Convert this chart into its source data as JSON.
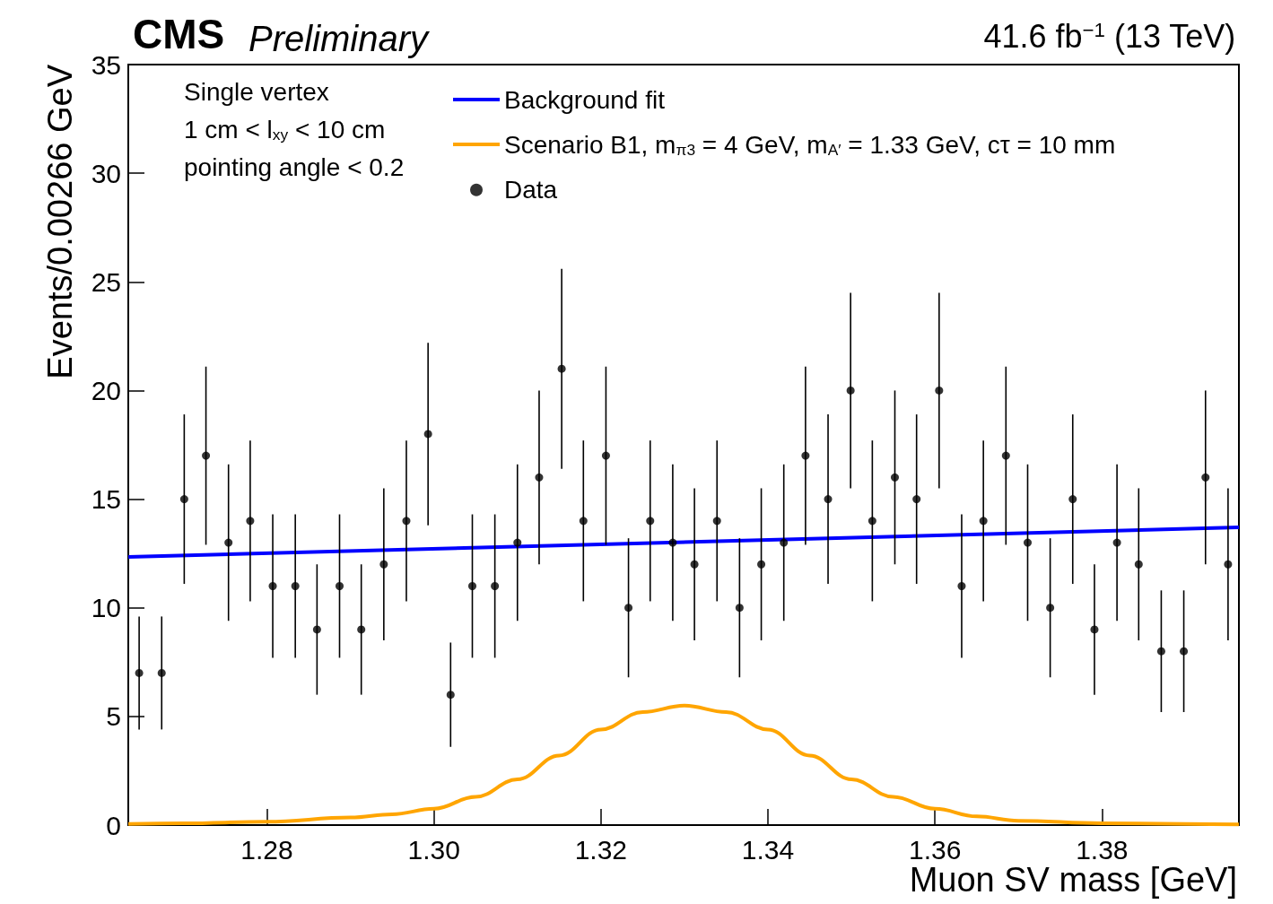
{
  "chart_data": {
    "type": "scatter",
    "title": "CMS",
    "subtitle": "Preliminary",
    "xlabel": "Muon SV mass [GeV]",
    "ylabel": "Events/0.00266 GeV",
    "annotations": [
      "Single vertex",
      "1 cm < l$_{xy}$ < 10 cm",
      "pointing angle < 0.2",
      "41.6 fb$^{−1}$ (13 TeV)"
    ],
    "xlim": [
      1.2634,
      1.3964
    ],
    "xticks": [
      {
        "value": 1.28,
        "label": "1.28"
      },
      {
        "value": 1.3,
        "label": "1.30"
      },
      {
        "value": 1.32,
        "label": "1.32"
      },
      {
        "value": 1.34,
        "label": "1.34"
      },
      {
        "value": 1.36,
        "label": "1.36"
      },
      {
        "value": 1.38,
        "label": "1.38"
      }
    ],
    "ylim": [
      0,
      35
    ],
    "yticks": [
      0,
      5,
      10,
      15,
      20,
      25,
      30,
      35
    ],
    "grid": false,
    "legend": "top",
    "series": [
      {
        "name": "Background fit",
        "type": "line",
        "color": "#0000ff",
        "marker": "none",
        "x": [
          1.2634,
          1.3964
        ],
        "values": [
          12.34,
          13.7
        ]
      },
      {
        "name": "Scenario B1, m$_{π3}$ = 4 GeV, m$_{A′}$ = 1.33 GeV, cτ = 10 mm",
        "type": "line",
        "color": "#ffa500",
        "marker": "none",
        "x": [
          1.2634,
          1.27,
          1.28,
          1.29,
          1.295,
          1.3,
          1.305,
          1.31,
          1.315,
          1.32,
          1.325,
          1.33,
          1.335,
          1.34,
          1.345,
          1.35,
          1.355,
          1.36,
          1.365,
          1.37,
          1.38,
          1.3964
        ],
        "values": [
          0.05,
          0.08,
          0.15,
          0.35,
          0.5,
          0.75,
          1.3,
          2.1,
          3.2,
          4.4,
          5.2,
          5.5,
          5.2,
          4.4,
          3.2,
          2.1,
          1.3,
          0.75,
          0.4,
          0.2,
          0.08,
          0.03
        ]
      },
      {
        "name": "Data",
        "color": "#000000",
        "marker": "circle",
        "x": [
          1.2647,
          1.2674,
          1.2701,
          1.2727,
          1.2754,
          1.278,
          1.2807,
          1.2834,
          1.286,
          1.2887,
          1.2913,
          1.294,
          1.2967,
          1.2993,
          1.302,
          1.3046,
          1.3073,
          1.31,
          1.3126,
          1.3153,
          1.3179,
          1.3206,
          1.3233,
          1.3259,
          1.3286,
          1.3312,
          1.3339,
          1.3366,
          1.3392,
          1.3419,
          1.3445,
          1.3472,
          1.3499,
          1.3525,
          1.3552,
          1.3578,
          1.3605,
          1.3632,
          1.3658,
          1.3685,
          1.3711,
          1.3738,
          1.3765,
          1.3791,
          1.3818,
          1.3844,
          1.3871,
          1.3898,
          1.3924,
          1.3951
        ],
        "values": [
          7,
          7,
          15,
          17,
          13,
          14,
          11,
          11,
          9,
          11,
          9,
          12,
          14,
          18,
          6,
          11,
          11,
          13,
          16,
          21,
          14,
          17,
          10,
          14,
          13,
          12,
          14,
          10,
          12,
          13,
          17,
          15,
          20,
          14,
          16,
          15,
          20,
          11,
          14,
          17,
          13,
          10,
          15,
          9,
          13,
          12,
          8,
          8,
          16,
          12
        ],
        "errors": [
          2.6,
          2.6,
          3.9,
          4.1,
          3.6,
          3.7,
          3.3,
          3.3,
          3.0,
          3.3,
          3.0,
          3.5,
          3.7,
          4.2,
          2.4,
          3.3,
          3.3,
          3.6,
          4.0,
          4.6,
          3.7,
          4.1,
          3.2,
          3.7,
          3.6,
          3.5,
          3.7,
          3.2,
          3.5,
          3.6,
          4.1,
          3.9,
          4.5,
          3.7,
          4.0,
          3.9,
          4.5,
          3.3,
          3.7,
          4.1,
          3.6,
          3.2,
          3.9,
          3.0,
          3.6,
          3.5,
          2.8,
          2.8,
          4.0,
          3.5
        ]
      }
    ]
  }
}
